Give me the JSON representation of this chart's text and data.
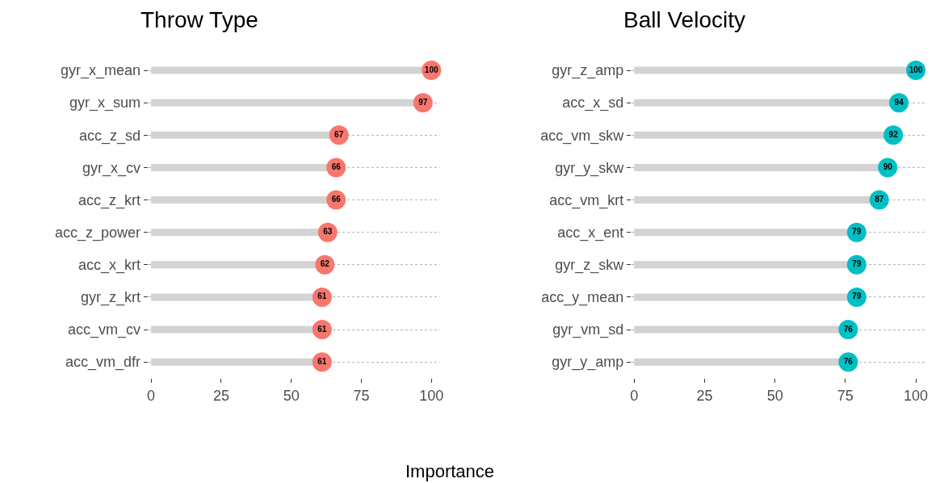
{
  "chart_data": [
    {
      "type": "lollipop",
      "title": "Throw Type",
      "xlabel": "Importance",
      "orientation": "horizontal",
      "categories": [
        "gyr_x_mean",
        "gyr_x_sum",
        "acc_z_sd",
        "gyr_x_cv",
        "acc_z_krt",
        "acc_z_power",
        "acc_x_krt",
        "gyr_z_krt",
        "acc_vm_cv",
        "acc_vm_dfr"
      ],
      "series": [
        {
          "color": "#f8766d",
          "values": [
            100,
            97,
            67,
            66,
            66,
            63,
            62,
            61,
            61,
            61
          ]
        }
      ],
      "xlim": [
        -1,
        103
      ],
      "xticks": [
        0,
        25,
        50,
        75,
        100
      ],
      "grid": "y",
      "data_labels": true
    },
    {
      "type": "lollipop",
      "title": "Ball Velocity",
      "orientation": "horizontal",
      "categories": [
        "gyr_z_amp",
        "acc_x_sd",
        "acc_vm_skw",
        "gyr_y_skw",
        "acc_vm_krt",
        "acc_x_ent",
        "gyr_z_skw",
        "acc_y_mean",
        "gyr_vm_sd",
        "gyr_y_amp"
      ],
      "series": [
        {
          "color": "#00bfc4",
          "values": [
            100,
            94,
            92,
            90,
            87,
            79,
            79,
            79,
            76,
            76
          ]
        }
      ],
      "xlim": [
        -1,
        103
      ],
      "xticks": [
        0,
        25,
        50,
        75,
        100
      ],
      "grid": "y",
      "data_labels": true
    }
  ]
}
